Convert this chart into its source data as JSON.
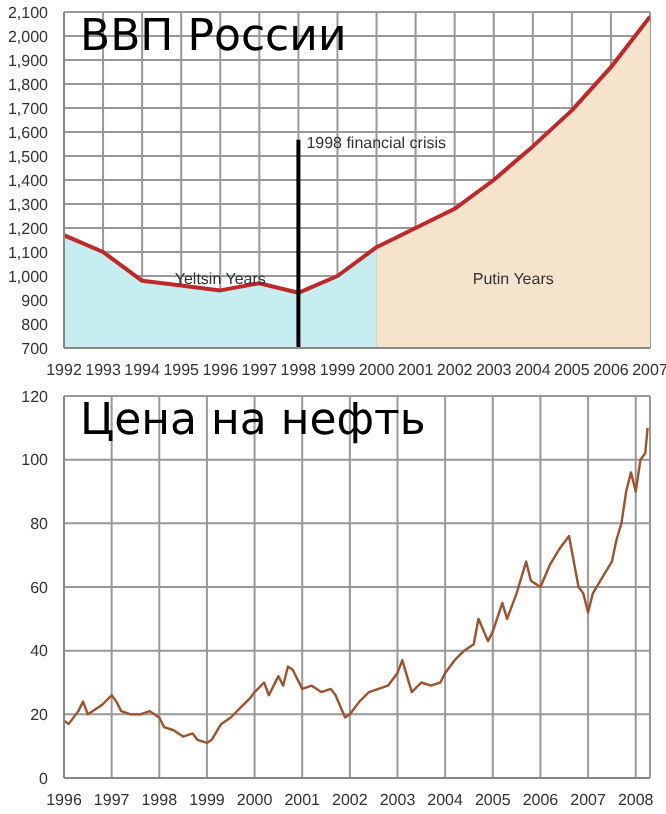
{
  "chart_data": [
    {
      "type": "line",
      "title": "ВВП России",
      "x": [
        1992,
        1993,
        1994,
        1995,
        1996,
        1997,
        1998,
        1999,
        2000,
        2001,
        2002,
        2003,
        2004,
        2005,
        2006,
        2007
      ],
      "series": [
        {
          "type": "area",
          "name": "Yeltsin Years",
          "color": "#c6eef0",
          "x": [
            1992,
            1993,
            1994,
            1995,
            1996,
            1997,
            1998,
            1999,
            2000
          ],
          "values": [
            1170,
            1100,
            980,
            960,
            940,
            970,
            930,
            1000,
            1120
          ]
        },
        {
          "type": "area",
          "name": "Putin Years",
          "color": "#f5e3cc",
          "x": [
            2000,
            2001,
            2002,
            2003,
            2004,
            2005,
            2006,
            2007
          ],
          "values": [
            1120,
            1200,
            1280,
            1400,
            1540,
            1690,
            1870,
            2080
          ]
        },
        {
          "color": "#c0282a",
          "values": [
            1170,
            1100,
            980,
            960,
            940,
            970,
            930,
            1000,
            1120,
            1200,
            1280,
            1400,
            1540,
            1690,
            1870,
            2080
          ]
        }
      ],
      "xlim": [
        1992,
        2007
      ],
      "xticks": [
        1992,
        1993,
        1994,
        1995,
        1996,
        1997,
        1998,
        1999,
        2000,
        2001,
        2002,
        2003,
        2004,
        2005,
        2006,
        2007
      ],
      "ylim": [
        700,
        2100
      ],
      "yticks": [
        700,
        800,
        900,
        {
          "value": 1000,
          "label": "1,000"
        },
        {
          "value": 1100,
          "label": "1,100"
        },
        {
          "value": 1200,
          "label": "1,200"
        },
        {
          "value": 1300,
          "label": "1,300"
        },
        {
          "value": 1400,
          "label": "1,400"
        },
        {
          "value": 1500,
          "label": "1,500"
        },
        {
          "value": 1600,
          "label": "1,600"
        },
        {
          "value": 1700,
          "label": "1,700"
        },
        {
          "value": 1800,
          "label": "1,800"
        },
        {
          "value": 1900,
          "label": "1,900"
        },
        {
          "value": 2000,
          "label": "2,000"
        },
        {
          "value": 2100,
          "label": "2,100"
        }
      ],
      "ref_lines": [
        {
          "axis": "x",
          "value": 1998,
          "label": "1998 financial crisis",
          "color": "#000000"
        }
      ],
      "grid": true
    },
    {
      "type": "line",
      "title": "Цена на нефть",
      "x": [
        1996.0,
        1996.1,
        1996.3,
        1996.4,
        1996.5,
        1996.6,
        1996.8,
        1997.0,
        1997.1,
        1997.2,
        1997.4,
        1997.6,
        1997.8,
        1998.0,
        1998.1,
        1998.3,
        1998.5,
        1998.7,
        1998.8,
        1999.0,
        1999.1,
        1999.3,
        1999.5,
        1999.7,
        1999.9,
        2000.0,
        2000.2,
        2000.3,
        2000.5,
        2000.6,
        2000.7,
        2000.8,
        2000.9,
        2001.0,
        2001.2,
        2001.4,
        2001.6,
        2001.7,
        2001.9,
        2002.0,
        2002.2,
        2002.4,
        2002.6,
        2002.8,
        2003.0,
        2003.1,
        2003.3,
        2003.5,
        2003.7,
        2003.9,
        2004.0,
        2004.2,
        2004.4,
        2004.6,
        2004.7,
        2004.9,
        2005.0,
        2005.2,
        2005.3,
        2005.5,
        2005.7,
        2005.8,
        2006.0,
        2006.2,
        2006.4,
        2006.5,
        2006.6,
        2006.7,
        2006.8,
        2006.9,
        2007.0,
        2007.1,
        2007.3,
        2007.5,
        2007.6,
        2007.7,
        2007.8,
        2007.9,
        2008.0,
        2008.1,
        2008.2,
        2008.25
      ],
      "series": [
        {
          "color": "#a0522d",
          "values": [
            18,
            17,
            21,
            24,
            20,
            21,
            23,
            26,
            24,
            21,
            20,
            20,
            21,
            19,
            16,
            15,
            13,
            14,
            12,
            11,
            12,
            17,
            19,
            22,
            25,
            27,
            30,
            26,
            32,
            29,
            35,
            34,
            31,
            28,
            29,
            27,
            28,
            26,
            19,
            20,
            24,
            27,
            28,
            29,
            33,
            37,
            27,
            30,
            29,
            30,
            33,
            37,
            40,
            42,
            50,
            43,
            46,
            55,
            50,
            58,
            68,
            62,
            60,
            67,
            72,
            74,
            76,
            68,
            60,
            58,
            52,
            58,
            63,
            68,
            75,
            80,
            90,
            96,
            90,
            100,
            102,
            110
          ]
        }
      ],
      "xlim": [
        1996,
        2008.3
      ],
      "xticks": [
        1996,
        1997,
        1998,
        1999,
        2000,
        2001,
        2002,
        2003,
        2004,
        2005,
        2006,
        2007,
        2008
      ],
      "ylim": [
        0,
        120
      ],
      "yticks": [
        0,
        20,
        40,
        60,
        80,
        100,
        120
      ],
      "grid": true
    }
  ]
}
